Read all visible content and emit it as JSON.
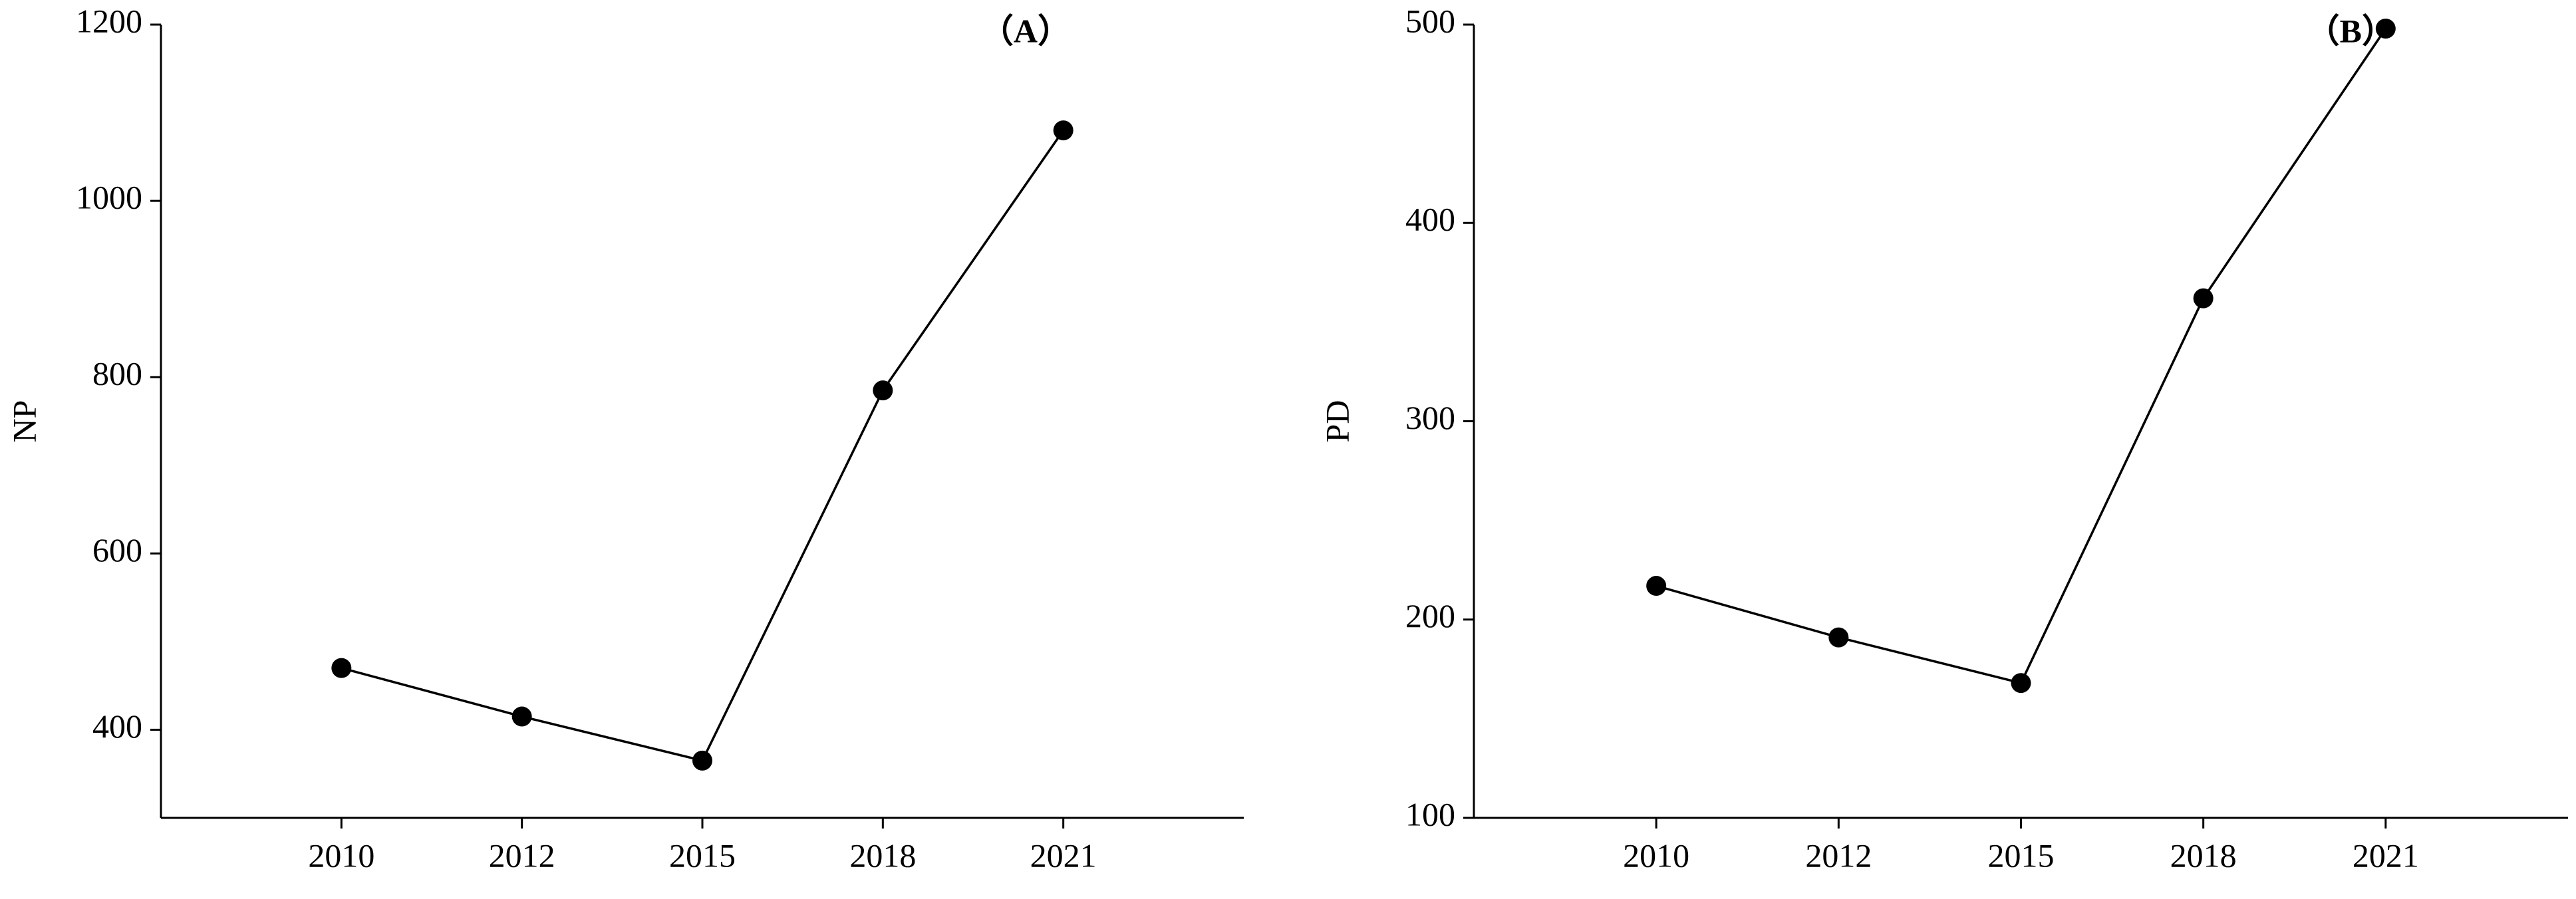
{
  "chart_data": [
    {
      "type": "line",
      "annotation": "（A）",
      "y_label": "NP",
      "categories": [
        "2010",
        "2012",
        "2015",
        "2018",
        "2021"
      ],
      "values": [
        470,
        415,
        365,
        785,
        1080
      ],
      "color": "#000000",
      "ylim": [
        300,
        1200
      ],
      "yticks": [
        400,
        600,
        800,
        1000,
        1200
      ]
    },
    {
      "type": "line",
      "annotation": "（B）",
      "y_label": "PD",
      "categories": [
        "2010",
        "2012",
        "2015",
        "2018",
        "2021"
      ],
      "values": [
        217,
        191,
        168,
        362,
        498
      ],
      "color": "#000000",
      "ylim": [
        100,
        500
      ],
      "yticks": [
        100,
        200,
        300,
        400,
        500
      ]
    }
  ]
}
